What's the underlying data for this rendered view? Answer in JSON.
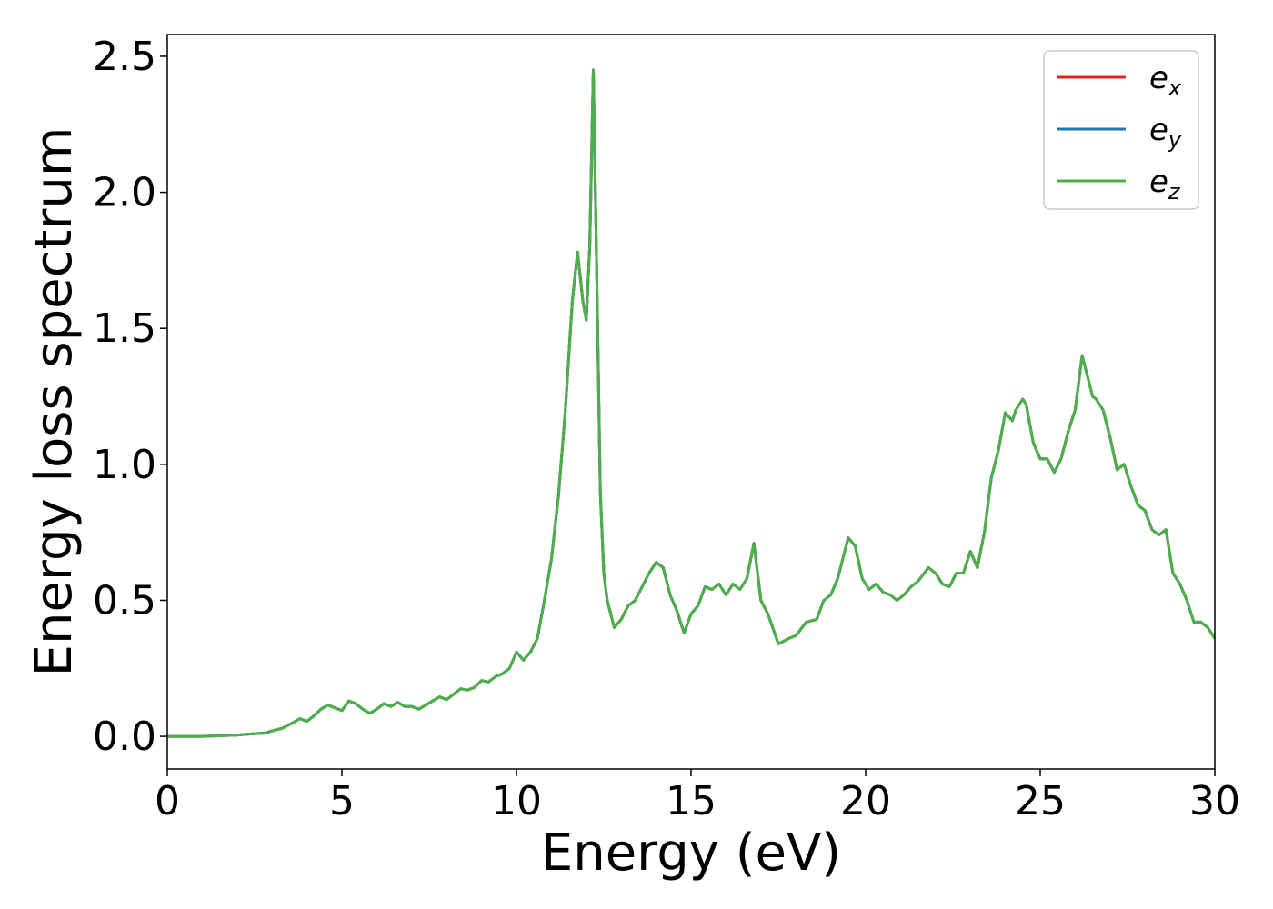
{
  "chart_data": {
    "type": "line",
    "xlabel": "Energy (eV)",
    "ylabel": "Energy loss spectrum",
    "xlim": [
      0,
      30
    ],
    "ylim": [
      -0.12,
      2.58
    ],
    "grid": false,
    "legend_position": "top-right",
    "xticks": [
      0,
      5,
      10,
      15,
      20,
      25,
      30
    ],
    "xtick_labels": [
      "0",
      "5",
      "10",
      "15",
      "20",
      "25",
      "30"
    ],
    "yticks": [
      0.0,
      0.5,
      1.0,
      1.5,
      2.0,
      2.5
    ],
    "ytick_labels": [
      "0.0",
      "0.5",
      "1.0",
      "1.5",
      "2.0",
      "2.5"
    ],
    "x": [
      0,
      1,
      2,
      2.5,
      2.8,
      3.0,
      3.3,
      3.6,
      3.8,
      4.0,
      4.2,
      4.4,
      4.6,
      4.8,
      5.0,
      5.2,
      5.4,
      5.6,
      5.8,
      6.0,
      6.2,
      6.4,
      6.6,
      6.8,
      7.0,
      7.2,
      7.4,
      7.6,
      7.8,
      8.0,
      8.2,
      8.4,
      8.6,
      8.8,
      9.0,
      9.2,
      9.4,
      9.6,
      9.8,
      10.0,
      10.2,
      10.4,
      10.6,
      10.8,
      11.0,
      11.2,
      11.4,
      11.6,
      11.75,
      11.9,
      12.0,
      12.1,
      12.2,
      12.3,
      12.4,
      12.5,
      12.6,
      12.8,
      13.0,
      13.2,
      13.4,
      13.6,
      13.8,
      14.0,
      14.2,
      14.4,
      14.6,
      14.8,
      15.0,
      15.2,
      15.4,
      15.6,
      15.8,
      16.0,
      16.2,
      16.4,
      16.6,
      16.8,
      17.0,
      17.2,
      17.5,
      17.8,
      18.0,
      18.3,
      18.6,
      18.8,
      19.0,
      19.2,
      19.5,
      19.7,
      19.9,
      20.1,
      20.3,
      20.5,
      20.7,
      20.9,
      21.1,
      21.3,
      21.5,
      21.8,
      22.0,
      22.2,
      22.4,
      22.6,
      22.8,
      23.0,
      23.2,
      23.4,
      23.6,
      23.8,
      24.0,
      24.2,
      24.3,
      24.5,
      24.6,
      24.8,
      25.0,
      25.2,
      25.4,
      25.6,
      25.8,
      26.0,
      26.2,
      26.4,
      26.5,
      26.6,
      26.8,
      27.0,
      27.2,
      27.4,
      27.6,
      27.8,
      28.0,
      28.2,
      28.4,
      28.6,
      28.8,
      29.0,
      29.2,
      29.4,
      29.6,
      29.8,
      30.0
    ],
    "series": [
      {
        "name": "e_x",
        "color": "#d62728",
        "values": [
          0,
          0,
          0.005,
          0.01,
          0.012,
          0.02,
          0.03,
          0.05,
          0.065,
          0.055,
          0.075,
          0.1,
          0.115,
          0.105,
          0.095,
          0.13,
          0.12,
          0.1,
          0.085,
          0.1,
          0.12,
          0.11,
          0.125,
          0.11,
          0.11,
          0.1,
          0.115,
          0.13,
          0.145,
          0.135,
          0.155,
          0.175,
          0.17,
          0.18,
          0.205,
          0.2,
          0.22,
          0.23,
          0.25,
          0.31,
          0.28,
          0.31,
          0.36,
          0.5,
          0.65,
          0.88,
          1.2,
          1.6,
          1.78,
          1.6,
          1.53,
          1.8,
          2.45,
          1.7,
          0.9,
          0.6,
          0.5,
          0.4,
          0.43,
          0.48,
          0.5,
          0.55,
          0.6,
          0.64,
          0.62,
          0.52,
          0.46,
          0.38,
          0.45,
          0.48,
          0.55,
          0.54,
          0.56,
          0.52,
          0.56,
          0.54,
          0.58,
          0.71,
          0.5,
          0.45,
          0.34,
          0.36,
          0.37,
          0.42,
          0.43,
          0.5,
          0.52,
          0.58,
          0.73,
          0.7,
          0.58,
          0.54,
          0.56,
          0.53,
          0.52,
          0.5,
          0.52,
          0.55,
          0.57,
          0.62,
          0.6,
          0.56,
          0.55,
          0.6,
          0.6,
          0.68,
          0.62,
          0.75,
          0.95,
          1.05,
          1.19,
          1.16,
          1.2,
          1.24,
          1.22,
          1.08,
          1.02,
          1.02,
          0.97,
          1.02,
          1.12,
          1.2,
          1.4,
          1.3,
          1.25,
          1.24,
          1.2,
          1.1,
          0.98,
          1.0,
          0.92,
          0.85,
          0.83,
          0.76,
          0.74,
          0.76,
          0.6,
          0.56,
          0.5,
          0.42,
          0.42,
          0.4,
          0.36
        ]
      },
      {
        "name": "e_y",
        "color": "#1f77b4",
        "values": [
          0,
          0,
          0.005,
          0.01,
          0.012,
          0.02,
          0.03,
          0.05,
          0.065,
          0.055,
          0.075,
          0.1,
          0.115,
          0.105,
          0.095,
          0.13,
          0.12,
          0.1,
          0.085,
          0.1,
          0.12,
          0.11,
          0.125,
          0.11,
          0.11,
          0.1,
          0.115,
          0.13,
          0.145,
          0.135,
          0.155,
          0.175,
          0.17,
          0.18,
          0.205,
          0.2,
          0.22,
          0.23,
          0.25,
          0.31,
          0.28,
          0.31,
          0.36,
          0.5,
          0.65,
          0.88,
          1.2,
          1.6,
          1.78,
          1.6,
          1.53,
          1.8,
          2.45,
          1.7,
          0.9,
          0.6,
          0.5,
          0.4,
          0.43,
          0.48,
          0.5,
          0.55,
          0.6,
          0.64,
          0.62,
          0.52,
          0.46,
          0.38,
          0.45,
          0.48,
          0.55,
          0.54,
          0.56,
          0.52,
          0.56,
          0.54,
          0.58,
          0.71,
          0.5,
          0.45,
          0.34,
          0.36,
          0.37,
          0.42,
          0.43,
          0.5,
          0.52,
          0.58,
          0.73,
          0.7,
          0.58,
          0.54,
          0.56,
          0.53,
          0.52,
          0.5,
          0.52,
          0.55,
          0.57,
          0.62,
          0.6,
          0.56,
          0.55,
          0.6,
          0.6,
          0.68,
          0.62,
          0.75,
          0.95,
          1.05,
          1.19,
          1.16,
          1.2,
          1.24,
          1.22,
          1.08,
          1.02,
          1.02,
          0.97,
          1.02,
          1.12,
          1.2,
          1.4,
          1.3,
          1.25,
          1.24,
          1.2,
          1.1,
          0.98,
          1.0,
          0.92,
          0.85,
          0.83,
          0.76,
          0.74,
          0.76,
          0.6,
          0.56,
          0.5,
          0.42,
          0.42,
          0.4,
          0.36
        ]
      },
      {
        "name": "e_z",
        "color": "#4daf4a",
        "values": [
          0,
          0,
          0.005,
          0.01,
          0.012,
          0.02,
          0.03,
          0.05,
          0.065,
          0.055,
          0.075,
          0.1,
          0.115,
          0.105,
          0.095,
          0.13,
          0.12,
          0.1,
          0.085,
          0.1,
          0.12,
          0.11,
          0.125,
          0.11,
          0.11,
          0.1,
          0.115,
          0.13,
          0.145,
          0.135,
          0.155,
          0.175,
          0.17,
          0.18,
          0.205,
          0.2,
          0.22,
          0.23,
          0.25,
          0.31,
          0.28,
          0.31,
          0.36,
          0.5,
          0.65,
          0.88,
          1.2,
          1.6,
          1.78,
          1.6,
          1.53,
          1.8,
          2.45,
          1.7,
          0.9,
          0.6,
          0.5,
          0.4,
          0.43,
          0.48,
          0.5,
          0.55,
          0.6,
          0.64,
          0.62,
          0.52,
          0.46,
          0.38,
          0.45,
          0.48,
          0.55,
          0.54,
          0.56,
          0.52,
          0.56,
          0.54,
          0.58,
          0.71,
          0.5,
          0.45,
          0.34,
          0.36,
          0.37,
          0.42,
          0.43,
          0.5,
          0.52,
          0.58,
          0.73,
          0.7,
          0.58,
          0.54,
          0.56,
          0.53,
          0.52,
          0.5,
          0.52,
          0.55,
          0.57,
          0.62,
          0.6,
          0.56,
          0.55,
          0.6,
          0.6,
          0.68,
          0.62,
          0.75,
          0.95,
          1.05,
          1.19,
          1.16,
          1.2,
          1.24,
          1.22,
          1.08,
          1.02,
          1.02,
          0.97,
          1.02,
          1.12,
          1.2,
          1.4,
          1.3,
          1.25,
          1.24,
          1.2,
          1.1,
          0.98,
          1.0,
          0.92,
          0.85,
          0.83,
          0.76,
          0.74,
          0.76,
          0.6,
          0.56,
          0.5,
          0.42,
          0.42,
          0.4,
          0.36
        ]
      }
    ],
    "legend": [
      {
        "base": "e",
        "sub": "x",
        "color": "#d62728"
      },
      {
        "base": "e",
        "sub": "y",
        "color": "#1f77b4"
      },
      {
        "base": "e",
        "sub": "z",
        "color": "#4daf4a"
      }
    ]
  }
}
